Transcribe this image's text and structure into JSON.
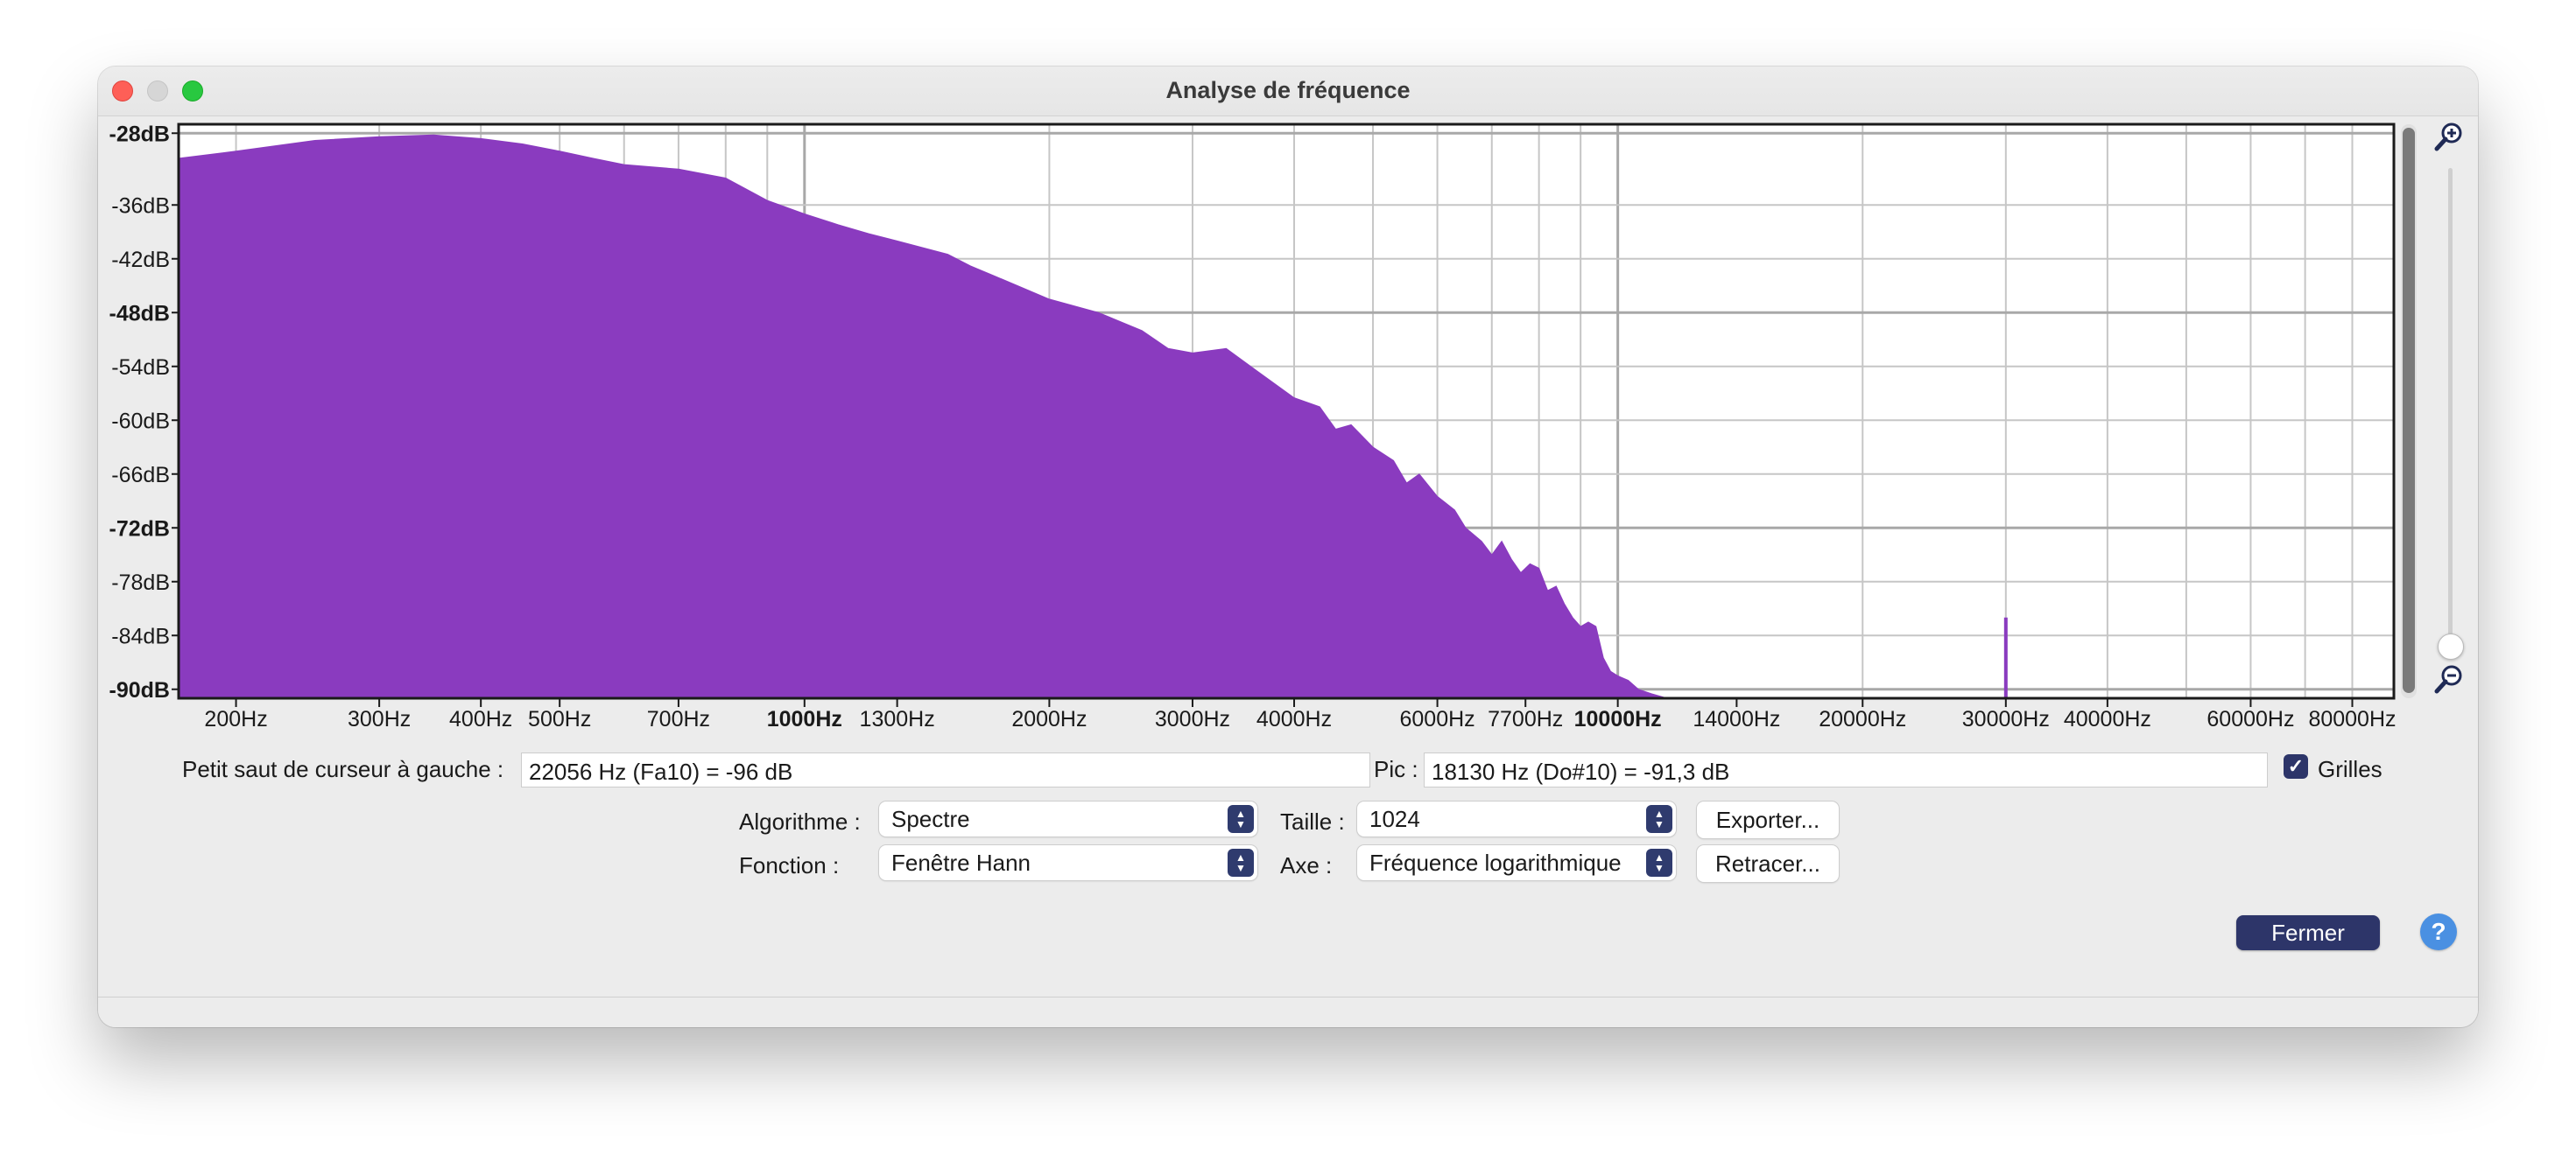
{
  "window": {
    "title": "Analyse de fréquence"
  },
  "chart_data": {
    "type": "area",
    "xscale": "log",
    "xlim": [
      170,
      90000
    ],
    "ylim": [
      -91,
      -27
    ],
    "ylabel": "",
    "xlabel": "",
    "title": "",
    "grid": true,
    "color": "#8a3bbf",
    "y_ticks": [
      {
        "label": "-28dB",
        "value": -28,
        "major": true
      },
      {
        "label": "-36dB",
        "value": -36,
        "major": false
      },
      {
        "label": "-42dB",
        "value": -42,
        "major": false
      },
      {
        "label": "-48dB",
        "value": -48,
        "major": true
      },
      {
        "label": "-54dB",
        "value": -54,
        "major": false
      },
      {
        "label": "-60dB",
        "value": -60,
        "major": false
      },
      {
        "label": "-66dB",
        "value": -66,
        "major": false
      },
      {
        "label": "-72dB",
        "value": -72,
        "major": true
      },
      {
        "label": "-78dB",
        "value": -78,
        "major": false
      },
      {
        "label": "-84dB",
        "value": -84,
        "major": false
      },
      {
        "label": "-90dB",
        "value": -90,
        "major": true
      }
    ],
    "x_ticks": [
      {
        "label": "200Hz",
        "value": 200,
        "major": false
      },
      {
        "label": "300Hz",
        "value": 300,
        "major": false
      },
      {
        "label": "400Hz",
        "value": 400,
        "major": false
      },
      {
        "label": "500Hz",
        "value": 500,
        "major": false
      },
      {
        "label": "700Hz",
        "value": 700,
        "major": false
      },
      {
        "label": "1000Hz",
        "value": 1000,
        "major": true
      },
      {
        "label": "1300Hz",
        "value": 1300,
        "major": false
      },
      {
        "label": "2000Hz",
        "value": 2000,
        "major": false
      },
      {
        "label": "3000Hz",
        "value": 3000,
        "major": false
      },
      {
        "label": "4000Hz",
        "value": 4000,
        "major": false
      },
      {
        "label": "6000Hz",
        "value": 6000,
        "major": false
      },
      {
        "label": "7700Hz",
        "value": 7700,
        "major": false
      },
      {
        "label": "10000Hz",
        "value": 10000,
        "major": true
      },
      {
        "label": "14000Hz",
        "value": 14000,
        "major": false
      },
      {
        "label": "20000Hz",
        "value": 20000,
        "major": false
      },
      {
        "label": "30000Hz",
        "value": 30000,
        "major": false
      },
      {
        "label": "40000Hz",
        "value": 40000,
        "major": false
      },
      {
        "label": "60000Hz",
        "value": 60000,
        "major": false
      },
      {
        "label": "80000Hz",
        "value": 80000,
        "major": false
      }
    ],
    "series": [
      {
        "x": [
          170,
          200,
          250,
          300,
          350,
          400,
          450,
          500,
          550,
          600,
          700,
          800,
          900,
          1000,
          1100,
          1200,
          1300,
          1500,
          1600,
          1700,
          2000,
          2300,
          2600,
          2800,
          3000,
          3300,
          3600,
          4000,
          4300,
          4500,
          4700,
          5000,
          5300,
          5500,
          5700,
          6000,
          6300,
          6500,
          6800,
          7000,
          7200,
          7400,
          7600,
          7800,
          8000,
          8200,
          8400,
          8600,
          8800,
          9000,
          9200,
          9400,
          9600,
          9800,
          10000,
          10300,
          10600,
          11000,
          11500
        ],
        "y": [
          -30.8,
          -30.0,
          -28.8,
          -28.4,
          -28.2,
          -28.6,
          -29.2,
          -30.0,
          -30.8,
          -31.5,
          -32.0,
          -33.0,
          -35.5,
          -37.0,
          -38.2,
          -39.2,
          -40.0,
          -41.5,
          -42.8,
          -43.8,
          -46.5,
          -48.0,
          -50.0,
          -52.0,
          -52.5,
          -52.0,
          -54.5,
          -57.5,
          -58.5,
          -61.0,
          -60.5,
          -63.0,
          -64.5,
          -67.0,
          -66.0,
          -68.5,
          -70.0,
          -72.0,
          -73.5,
          -75.0,
          -73.5,
          -75.5,
          -77.0,
          -76.0,
          -76.5,
          -79.0,
          -78.5,
          -80.5,
          -82.0,
          -83.0,
          -82.5,
          -83.0,
          -86.5,
          -88.0,
          -88.5,
          -89.0,
          -90.0,
          -90.5,
          -91.0
        ]
      }
    ],
    "spike": {
      "x": 30000,
      "y": -82
    }
  },
  "controls": {
    "cursor_label": "Petit saut de curseur à gauche :",
    "cursor_value": "22056 Hz (Fa10) = -96 dB",
    "peak_label": "Pic :",
    "peak_value": "18130 Hz (Do#10) = -91,3 dB",
    "grid_label": "Grilles",
    "grid_checked": true,
    "algorithm_label": "Algorithme :",
    "algorithm_value": "Spectre",
    "size_label": "Taille :",
    "size_value": "1024",
    "export_label": "Exporter...",
    "function_label": "Fonction :",
    "function_value": "Fenêtre Hann",
    "axis_label": "Axe :",
    "axis_value": "Fréquence logarithmique",
    "replot_label": "Retracer...",
    "close_label": "Fermer",
    "help_label": "?"
  },
  "icons": {
    "zoom_in": "zoom-in-icon",
    "zoom_out": "zoom-out-icon",
    "help": "help-icon"
  }
}
